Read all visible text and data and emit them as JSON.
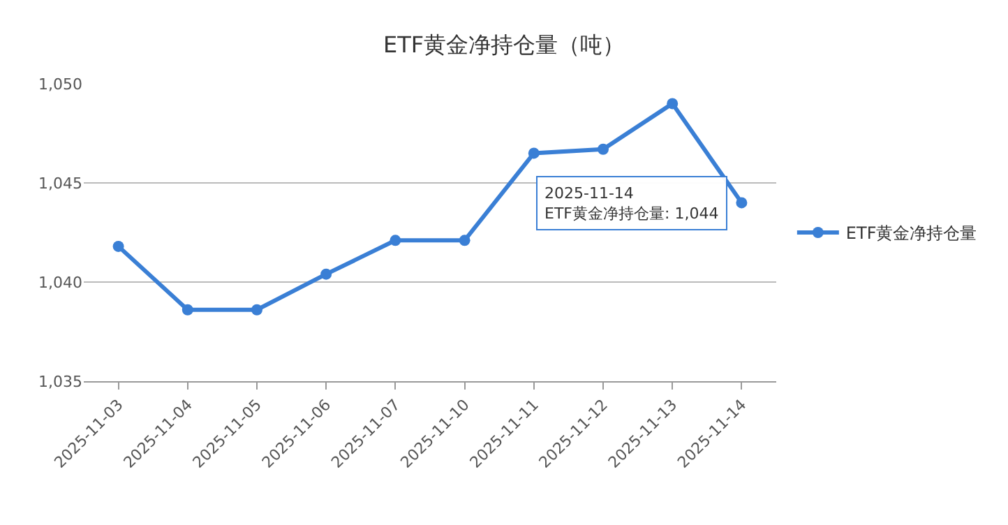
{
  "chart_data": {
    "type": "line",
    "title": "ETF黄金净持仓量（吨）",
    "categories": [
      "2025-11-03",
      "2025-11-04",
      "2025-11-05",
      "2025-11-06",
      "2025-11-07",
      "2025-11-10",
      "2025-11-11",
      "2025-11-12",
      "2025-11-13",
      "2025-11-14"
    ],
    "series": [
      {
        "name": "ETF黄金净持仓量",
        "color": "#3a7fd5",
        "values": [
          1041.8,
          1038.6,
          1038.6,
          1040.4,
          1042.1,
          1042.1,
          1046.5,
          1046.7,
          1049.0,
          1044.0
        ]
      }
    ],
    "ylim": [
      1035,
      1050
    ],
    "yticks": [
      {
        "value": 1035,
        "label": "1,035"
      },
      {
        "value": 1040,
        "label": "1,040"
      },
      {
        "value": 1045,
        "label": "1,045"
      },
      {
        "value": 1050,
        "label": "1,050"
      }
    ],
    "annotations": [
      {
        "text": "2025-11-14\nETF黄金净持仓量: 1,044",
        "x": "2025-11-14",
        "y": 1044
      }
    ],
    "grid": "y",
    "legend": "right",
    "marker": "circle",
    "line_style": "solid"
  }
}
